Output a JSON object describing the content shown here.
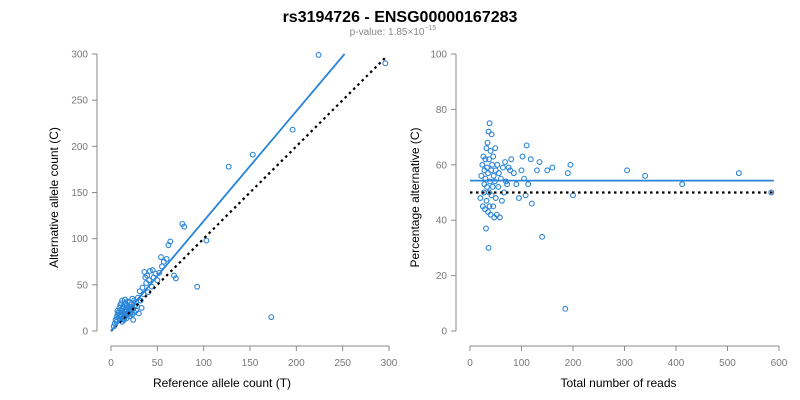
{
  "figure": {
    "title": "rs3194726 - ENSG00000167283",
    "pvalue_prefix": "p-value: 1.85×10",
    "pvalue_exponent": "−15",
    "accent": "#2a84d8",
    "ref_color": "#000000"
  },
  "chart_data": [
    {
      "type": "scatter",
      "xlabel": "Reference allele count (T)",
      "ylabel": "Alternative allele count (C)",
      "xlim": [
        0,
        300
      ],
      "ylim": [
        0,
        300
      ],
      "xticks": [
        0,
        50,
        100,
        150,
        200,
        250,
        300
      ],
      "yticks": [
        0,
        50,
        100,
        150,
        200,
        250,
        300
      ],
      "fit_line": {
        "x": [
          0,
          252
        ],
        "y": [
          0,
          300
        ]
      },
      "reference_line": {
        "x": [
          0,
          297
        ],
        "y": [
          0,
          297
        ]
      },
      "points": {
        "x": [
          3,
          4,
          5,
          6,
          6,
          7,
          7,
          8,
          8,
          9,
          9,
          10,
          10,
          10,
          11,
          11,
          11,
          12,
          12,
          12,
          12,
          13,
          13,
          13,
          14,
          14,
          14,
          15,
          15,
          15,
          15,
          16,
          16,
          16,
          17,
          17,
          17,
          18,
          18,
          18,
          19,
          19,
          20,
          20,
          20,
          21,
          21,
          22,
          22,
          23,
          23,
          24,
          24,
          25,
          25,
          26,
          27,
          27,
          28,
          29,
          30,
          31,
          32,
          33,
          34,
          35,
          36,
          37,
          38,
          39,
          40,
          41,
          42,
          44,
          45,
          46,
          48,
          50,
          52,
          54,
          55,
          57,
          60,
          62,
          64,
          68,
          70,
          77,
          79,
          93,
          103,
          127,
          153,
          173,
          196,
          224,
          296
        ],
        "y": [
          5,
          8,
          12,
          10,
          15,
          18,
          22,
          14,
          20,
          16,
          25,
          12,
          18,
          28,
          15,
          22,
          30,
          10,
          17,
          24,
          33,
          13,
          20,
          27,
          12,
          19,
          26,
          15,
          22,
          30,
          34,
          17,
          24,
          30,
          14,
          21,
          28,
          18,
          25,
          32,
          20,
          27,
          16,
          23,
          31,
          19,
          26,
          22,
          29,
          18,
          35,
          24,
          12,
          20,
          33,
          28,
          22,
          31,
          27,
          36,
          19,
          43,
          33,
          25,
          47,
          40,
          64,
          58,
          52,
          60,
          42,
          55,
          65,
          48,
          66,
          58,
          62,
          55,
          63,
          80,
          70,
          75,
          78,
          93,
          97,
          60,
          57,
          116,
          113,
          48,
          98,
          178,
          191,
          15,
          218,
          299,
          290
        ]
      }
    },
    {
      "type": "scatter",
      "xlabel": "Total number of reads",
      "ylabel": "Percentage alternative (C)",
      "xlim": [
        0,
        600
      ],
      "ylim": [
        0,
        100
      ],
      "xticks": [
        0,
        100,
        200,
        300,
        400,
        500,
        600
      ],
      "yticks": [
        0,
        20,
        40,
        60,
        80,
        100
      ],
      "fit_line": {
        "x": [
          0,
          590
        ],
        "y": [
          54.3,
          54.3
        ]
      },
      "reference_line": {
        "x": [
          0,
          590
        ],
        "y": [
          50,
          50
        ]
      },
      "points": {
        "x": [
          20,
          22,
          24,
          25,
          26,
          27,
          28,
          28,
          29,
          30,
          30,
          31,
          32,
          32,
          33,
          33,
          34,
          35,
          35,
          36,
          36,
          37,
          37,
          38,
          38,
          39,
          40,
          40,
          41,
          42,
          42,
          43,
          44,
          45,
          45,
          46,
          47,
          48,
          49,
          50,
          50,
          52,
          53,
          55,
          56,
          58,
          60,
          62,
          64,
          66,
          68,
          70,
          72,
          75,
          78,
          80,
          85,
          90,
          95,
          100,
          102,
          105,
          108,
          110,
          113,
          118,
          120,
          130,
          135,
          140,
          150,
          160,
          185,
          190,
          195,
          200,
          305,
          340,
          412,
          522,
          585
        ],
        "y": [
          48,
          56,
          60,
          45,
          63,
          50,
          58,
          53,
          44,
          62,
          55,
          37,
          66,
          47,
          59,
          52,
          68,
          43,
          57,
          30,
          72,
          50,
          62,
          45,
          75,
          54,
          42,
          65,
          58,
          71,
          49,
          60,
          52,
          45,
          63,
          56,
          41,
          54,
          66,
          58,
          48,
          42,
          60,
          52,
          57,
          41,
          55,
          47,
          59,
          50,
          61,
          54,
          53,
          59,
          58,
          62,
          57,
          53,
          48,
          58,
          63,
          55,
          49,
          67,
          53,
          62,
          46,
          58,
          61,
          34,
          58,
          59,
          8,
          57,
          60,
          49,
          58,
          56,
          53,
          57,
          50
        ]
      }
    }
  ]
}
